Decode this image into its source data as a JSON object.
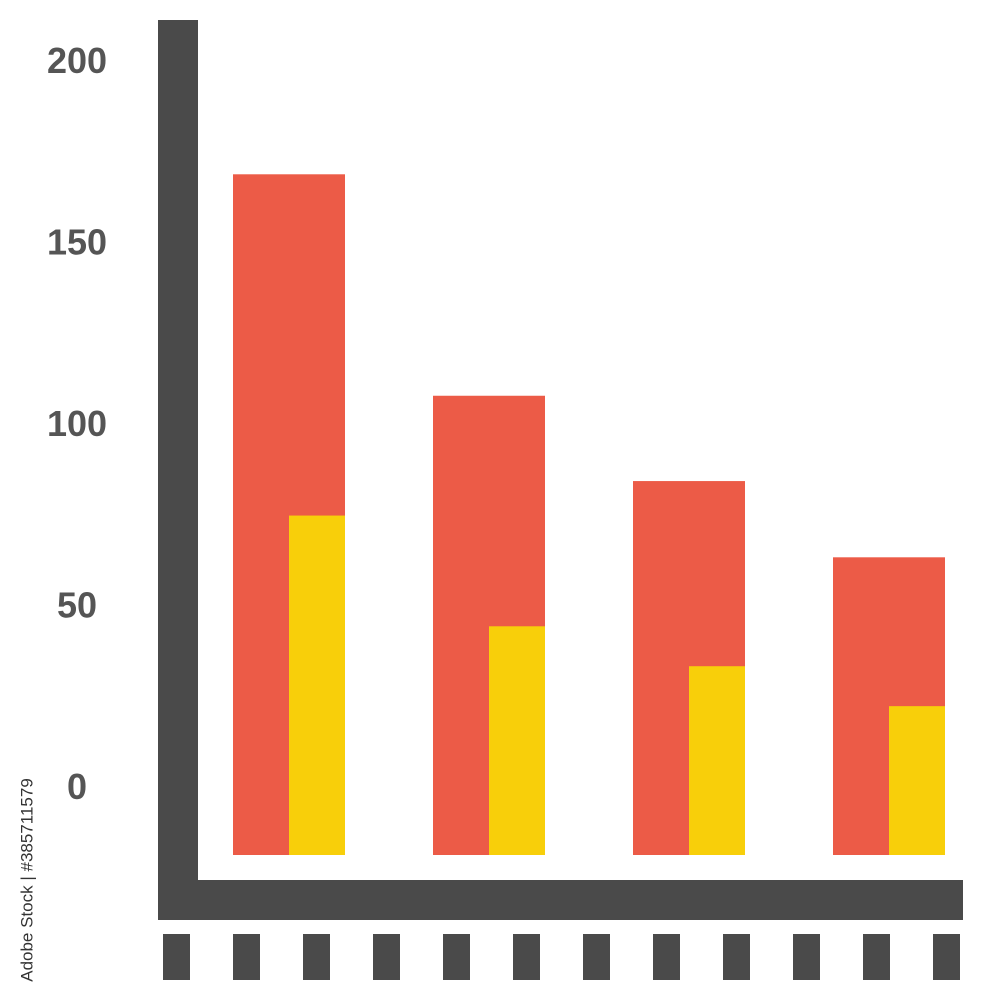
{
  "chart_data": {
    "type": "bar",
    "categories": [
      null,
      null,
      null,
      null
    ],
    "series": [
      {
        "color": "#ec5b47",
        "values": [
          169.5,
          108.5,
          85,
          64
        ]
      },
      {
        "color": "#f8cf0a",
        "values": [
          75.5,
          45,
          34,
          23
        ]
      }
    ],
    "ylim": [
      -18,
      212
    ],
    "yticks": [
      0,
      50,
      100,
      150,
      200
    ],
    "axis_color": "#4a4a4a",
    "watermark": "Adobe Stock | #385711579"
  }
}
